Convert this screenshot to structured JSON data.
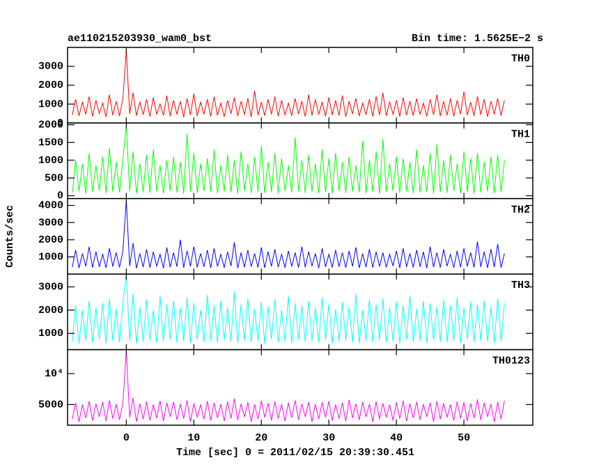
{
  "chart_data": {
    "type": "line",
    "title": "ae110215203930_wam0_bst",
    "subtitle": "Bin time: 1.5625E−2 s",
    "x_label": "Time [sec] 0 = 2011/02/15 20:39:30.451",
    "y_label": "Counts/sec",
    "xlim": [
      -8.7,
      60.2
    ],
    "xticks": [
      0,
      10,
      20,
      30,
      40,
      50
    ],
    "x": [
      -8,
      -7.5,
      -7,
      -6.5,
      -6,
      -5.5,
      -5,
      -4.5,
      -4,
      -3.5,
      -3,
      -2.5,
      -2,
      -1.5,
      -1,
      -0.5,
      0,
      0.5,
      1,
      1.5,
      2,
      2.5,
      3,
      3.5,
      4,
      4.5,
      5,
      5.5,
      6,
      6.5,
      7,
      7.5,
      8,
      8.5,
      9,
      9.5,
      10,
      10.5,
      11,
      11.5,
      12,
      12.5,
      13,
      13.5,
      14,
      14.5,
      15,
      15.5,
      16,
      16.5,
      17,
      17.5,
      18,
      18.5,
      19,
      19.5,
      20,
      20.5,
      21,
      21.5,
      22,
      22.5,
      23,
      23.5,
      24,
      24.5,
      25,
      25.5,
      26,
      26.5,
      27,
      27.5,
      28,
      28.5,
      29,
      29.5,
      30,
      30.5,
      31,
      31.5,
      32,
      32.5,
      33,
      33.5,
      34,
      34.5,
      35,
      35.5,
      36,
      36.5,
      37,
      37.5,
      38,
      38.5,
      39,
      39.5,
      40,
      40.5,
      41,
      41.5,
      42,
      42.5,
      43,
      43.5,
      44,
      44.5,
      45,
      45.5,
      46,
      46.5,
      47,
      47.5,
      48,
      48.5,
      49,
      49.5,
      50,
      50.5,
      51,
      51.5,
      52,
      52.5,
      53,
      53.5,
      54,
      54.5,
      55,
      55.5,
      56
    ],
    "panels": [
      {
        "name": "TH0",
        "color": "#ff0000",
        "ylim": [
          0,
          4000
        ],
        "yticks": [
          0,
          1000,
          2000,
          3000
        ],
        "log": false,
        "values": [
          420,
          1250,
          380,
          1100,
          450,
          1400,
          350,
          1200,
          500,
          1050,
          320,
          1500,
          410,
          1150,
          360,
          1300,
          3850,
          480,
          1600,
          390,
          1100,
          440,
          1250,
          330,
          1350,
          470,
          1000,
          400,
          1450,
          360,
          1200,
          450,
          1150,
          310,
          1300,
          420,
          1550,
          380,
          1100,
          460,
          1250,
          350,
          1400,
          400,
          1050,
          330,
          1200,
          480,
          1350,
          370,
          1150,
          440,
          1300,
          320,
          1700,
          410,
          1100,
          390,
          1250,
          460,
          1400,
          350,
          1200,
          430,
          1050,
          380,
          1300,
          470,
          1150,
          340,
          1500,
          400,
          1250,
          450,
          1100,
          360,
          1350,
          420,
          1200,
          390,
          1450,
          330,
          1150,
          480,
          1300,
          370,
          1050,
          440,
          1250,
          350,
          1400,
          410,
          1600,
          380,
          1100,
          460,
          1200,
          340,
          1350,
          420,
          1150,
          390,
          1300,
          450,
          1050,
          360,
          1250,
          430,
          1500,
          370,
          1150,
          400,
          1300,
          350,
          1200,
          470,
          1650,
          410,
          1100,
          380,
          1400,
          440,
          1250,
          330,
          1150,
          460,
          1300,
          390,
          1200
        ]
      },
      {
        "name": "TH1",
        "color": "#00ff00",
        "ylim": [
          -80,
          2050
        ],
        "yticks": [
          0,
          500,
          1000,
          1500,
          2000
        ],
        "log": false,
        "values": [
          80,
          1000,
          120,
          900,
          60,
          1200,
          100,
          850,
          140,
          1100,
          70,
          1350,
          110,
          950,
          90,
          1050,
          1950,
          130,
          1250,
          60,
          900,
          100,
          1150,
          80,
          1300,
          120,
          850,
          70,
          1000,
          140,
          1100,
          90,
          950,
          60,
          1750,
          110,
          1200,
          80,
          900,
          130,
          1050,
          100,
          1300,
          70,
          850,
          120,
          1150,
          90,
          1000,
          60,
          1250,
          140,
          900,
          80,
          1100,
          110,
          1400,
          70,
          950,
          100,
          1200,
          60,
          1050,
          130,
          850,
          90,
          1650,
          120,
          1000,
          80,
          1150,
          110,
          900,
          70,
          1300,
          100,
          1050,
          60,
          1200,
          140,
          950,
          80,
          1100,
          120,
          850,
          90,
          1550,
          70,
          1000,
          110,
          1250,
          60,
          1600,
          100,
          900,
          130,
          1100,
          80,
          1050,
          120,
          950,
          70,
          1300,
          90,
          850,
          110,
          1200,
          60,
          1450,
          100,
          1000,
          80,
          1150,
          130,
          900,
          70,
          1250,
          110,
          1050,
          60,
          1200,
          90,
          950,
          120,
          1100,
          70,
          1150,
          100,
          1000
        ]
      },
      {
        "name": "TH2",
        "color": "#0000ff",
        "ylim": [
          0,
          4400
        ],
        "yticks": [
          1000,
          2000,
          3000,
          4000
        ],
        "log": false,
        "values": [
          400,
          1400,
          350,
          1200,
          450,
          1600,
          380,
          1300,
          420,
          1150,
          360,
          1500,
          440,
          1250,
          390,
          1350,
          4300,
          470,
          1800,
          340,
          1200,
          410,
          1450,
          380,
          1300,
          460,
          1150,
          350,
          1550,
          400,
          1250,
          430,
          2000,
          370,
          1350,
          450,
          1600,
          390,
          1200,
          420,
          1400,
          360,
          1500,
          440,
          1150,
          380,
          1300,
          470,
          1850,
          350,
          1250,
          400,
          1400,
          430,
          1200,
          390,
          1550,
          360,
          1300,
          450,
          1450,
          410,
          1150,
          370,
          1350,
          440,
          1250,
          380,
          1600,
          400,
          1300,
          460,
          1200,
          350,
          1500,
          420,
          1150,
          390,
          1400,
          430,
          1250,
          370,
          1350,
          450,
          1550,
          360,
          1200,
          410,
          1450,
          380,
          1300,
          440,
          1250,
          400,
          1150,
          470,
          1350,
          360,
          1500,
          420,
          1200,
          390,
          1400,
          430,
          1300,
          350,
          1600,
          410,
          1250,
          380,
          1450,
          460,
          1150,
          370,
          1350,
          400,
          1500,
          440,
          1250,
          390,
          1900,
          420,
          1300,
          360,
          1450,
          410,
          1750,
          380,
          1200
        ]
      },
      {
        "name": "TH3",
        "color": "#00ffff",
        "ylim": [
          300,
          3550
        ],
        "yticks": [
          1000,
          2000,
          3000
        ],
        "log": false,
        "values": [
          650,
          2200,
          550,
          2000,
          700,
          2400,
          600,
          2100,
          750,
          2300,
          580,
          2500,
          680,
          2050,
          620,
          2350,
          3500,
          720,
          2700,
          560,
          2150,
          640,
          2450,
          700,
          2000,
          590,
          2600,
          660,
          2250,
          730,
          2400,
          610,
          2100,
          680,
          2550,
          570,
          2300,
          740,
          2000,
          630,
          2650,
          690,
          2200,
          600,
          2400,
          720,
          2100,
          650,
          2800,
          580,
          2250,
          700,
          2500,
          620,
          2050,
          680,
          2350,
          560,
          2150,
          740,
          2450,
          610,
          2000,
          670,
          2600,
          590,
          2300,
          720,
          2200,
          640,
          2400,
          680,
          2100,
          600,
          2550,
          730,
          2250,
          570,
          2050,
          660,
          2350,
          700,
          2150,
          620,
          2700,
          580,
          2000,
          690,
          2450,
          640,
          2250,
          710,
          2500,
          600,
          2100,
          670,
          2350,
          560,
          2200,
          730,
          2600,
          630,
          2050,
          690,
          2400,
          590,
          2300,
          720,
          2150,
          650,
          2450,
          610,
          2200,
          680,
          2550,
          570,
          2100,
          740,
          2350,
          620,
          2250,
          700,
          2400,
          640,
          2150,
          580,
          2500,
          660,
          2300
        ]
      },
      {
        "name": "TH0123",
        "color": "#ff00ff",
        "ylim": [
          3150,
          17100
        ],
        "yticks": [
          5000,
          {
            "value": 10000,
            "label": "10⁴"
          }
        ],
        "log": true,
        "values": [
          3600,
          5200,
          3400,
          5000,
          3700,
          5400,
          3500,
          5100,
          3800,
          5300,
          3450,
          5500,
          3650,
          5050,
          3550,
          5250,
          16500,
          3750,
          5800,
          3400,
          5100,
          3600,
          5350,
          3500,
          5000,
          3700,
          5450,
          3450,
          5200,
          3800,
          5300,
          3550,
          5050,
          3650,
          5500,
          3400,
          5150,
          3750,
          5000,
          3600,
          5400,
          3500,
          5200,
          3700,
          5050,
          3450,
          5350,
          3650,
          5700,
          3550,
          5100,
          3800,
          5250,
          3400,
          5000,
          3600,
          5450,
          3750,
          5150,
          3500,
          5350,
          3650,
          5050,
          3450,
          5200,
          3700,
          5500,
          3550,
          5100,
          3800,
          5300,
          3400,
          5050,
          3600,
          5250,
          3750,
          5400,
          3500,
          5000,
          3650,
          5200,
          3450,
          5550,
          3700,
          5100,
          3550,
          5300,
          3800,
          5050,
          3400,
          5350,
          3600,
          5150,
          3750,
          5000,
          3500,
          5250,
          3650,
          5450,
          3450,
          5100,
          3700,
          5300,
          3550,
          5050,
          3800,
          5200,
          3400,
          5400,
          3600,
          5150,
          3750,
          5000,
          3500,
          5350,
          3650,
          5250,
          3450,
          5100,
          3700,
          5600,
          3550,
          5200,
          3800,
          5050,
          3400,
          5300,
          3600,
          5450
        ]
      }
    ]
  }
}
